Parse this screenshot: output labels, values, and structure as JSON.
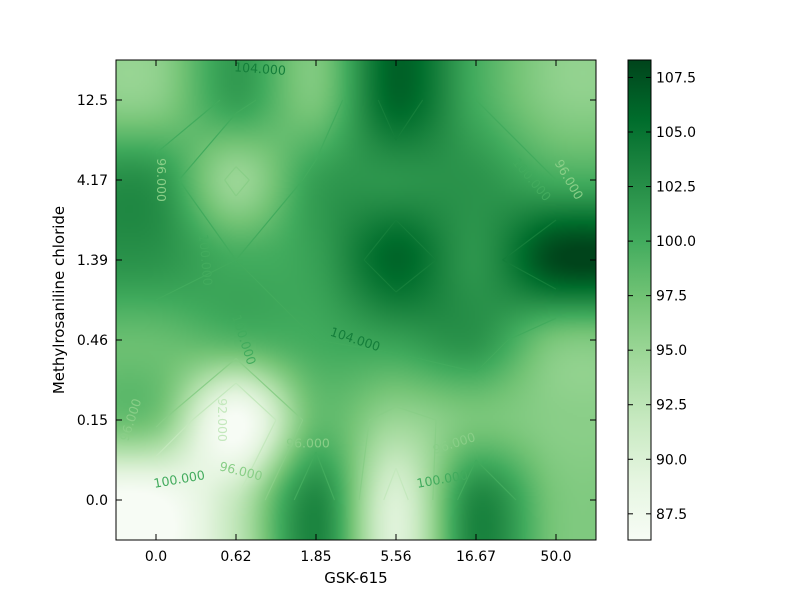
{
  "chart_data": {
    "type": "heatmap",
    "title": "",
    "xlabel": "GSK-615",
    "ylabel": "Methylrosaniline chloride",
    "x_categories": [
      "0.0",
      "0.62",
      "1.85",
      "5.56",
      "16.67",
      "50.0"
    ],
    "y_categories": [
      "0.0",
      "0.15",
      "0.46",
      "1.39",
      "4.17",
      "12.5"
    ],
    "z": [
      [
        86,
        92,
        103,
        90,
        103,
        97
      ],
      [
        97,
        86,
        98,
        95,
        97,
        96
      ],
      [
        98,
        99,
        100,
        101,
        102,
        97
      ],
      [
        102,
        100,
        101,
        106,
        102,
        108
      ],
      [
        102,
        95,
        101,
        102,
        102,
        100
      ],
      [
        96,
        101,
        97,
        106,
        100,
        96
      ]
    ],
    "zlim": [
      86.3,
      108.3
    ],
    "colormap": "Greens",
    "interpolation": "smooth",
    "colorbar": {
      "ticks": [
        87.5,
        90.0,
        92.5,
        95.0,
        97.5,
        100.0,
        102.5,
        105.0,
        107.5
      ],
      "tick_labels": [
        "87.5",
        "90.0",
        "92.5",
        "95.0",
        "97.5",
        "100.0",
        "102.5",
        "105.0",
        "107.5"
      ]
    },
    "contour_levels": [
      92,
      96,
      100,
      104
    ],
    "contour_labels": [
      {
        "text": "104.000",
        "x": 3.0,
        "y": 5.38,
        "rot": 4,
        "level": 104
      },
      {
        "text": "96.000",
        "x": 0.93,
        "y": 4.0,
        "rot": 90,
        "level": 96
      },
      {
        "text": "100.000",
        "x": 8.65,
        "y": 4.0,
        "rot": 50,
        "level": 100
      },
      {
        "text": "96.000",
        "x": 9.42,
        "y": 4.0,
        "rot": 60,
        "level": 96
      },
      {
        "text": "100.000",
        "x": 1.85,
        "y": 3.0,
        "rot": 85,
        "level": 100
      },
      {
        "text": "104.000",
        "x": 4.98,
        "y": 2.0,
        "rot": 18,
        "level": 104
      },
      {
        "text": "100.000",
        "x": 2.65,
        "y": 2.0,
        "rot": 72,
        "level": 100
      },
      {
        "text": "96.000",
        "x": 0.32,
        "y": 1.0,
        "rot": -72,
        "level": 96
      },
      {
        "text": "92.000",
        "x": 2.2,
        "y": 1.0,
        "rot": 90,
        "level": 92
      },
      {
        "text": "96.000",
        "x": 4.0,
        "y": 0.7,
        "rot": 0,
        "level": 96
      },
      {
        "text": "96.000",
        "x": 7.05,
        "y": 0.7,
        "rot": -18,
        "level": 96
      },
      {
        "text": "96.000",
        "x": 2.6,
        "y": 0.35,
        "rot": 14,
        "level": 96
      },
      {
        "text": "100.000",
        "x": 1.32,
        "y": 0.25,
        "rot": -10,
        "level": 100
      },
      {
        "text": "100.000",
        "x": 6.8,
        "y": 0.25,
        "rot": -10,
        "level": 100
      }
    ]
  }
}
